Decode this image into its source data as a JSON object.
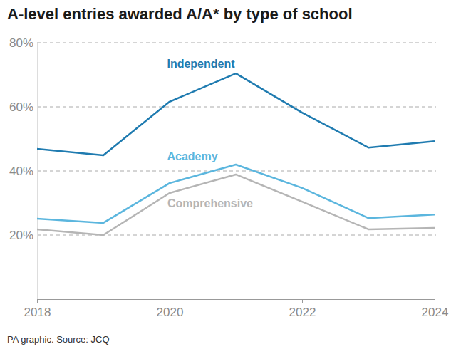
{
  "chart_data": {
    "type": "line",
    "title": "A-level entries awarded A/A* by type of school",
    "source": "PA graphic. Source: JCQ",
    "x": [
      2018,
      2019,
      2020,
      2021,
      2022,
      2023,
      2024
    ],
    "xlim": [
      2018,
      2024
    ],
    "xticks": [
      2018,
      2020,
      2022,
      2024
    ],
    "ylim": [
      0,
      80
    ],
    "yticks": [
      {
        "value": 20,
        "label": "20%"
      },
      {
        "value": 40,
        "label": "40%"
      },
      {
        "value": 60,
        "label": "60%"
      },
      {
        "value": 80,
        "label": "80%"
      }
    ],
    "grid": true,
    "series": [
      {
        "name": "Independent",
        "color": "#1f7bb0",
        "values": [
          46.9,
          44.9,
          61.6,
          70.4,
          58.2,
          47.3,
          49.3
        ]
      },
      {
        "name": "Academy",
        "color": "#5bb6de",
        "values": [
          25.1,
          23.8,
          36.2,
          42.0,
          34.7,
          25.3,
          26.4
        ]
      },
      {
        "name": "Comprehensive",
        "color": "#b5b5b5",
        "values": [
          21.8,
          20.0,
          33.1,
          38.9,
          30.4,
          21.8,
          22.2
        ]
      }
    ]
  }
}
